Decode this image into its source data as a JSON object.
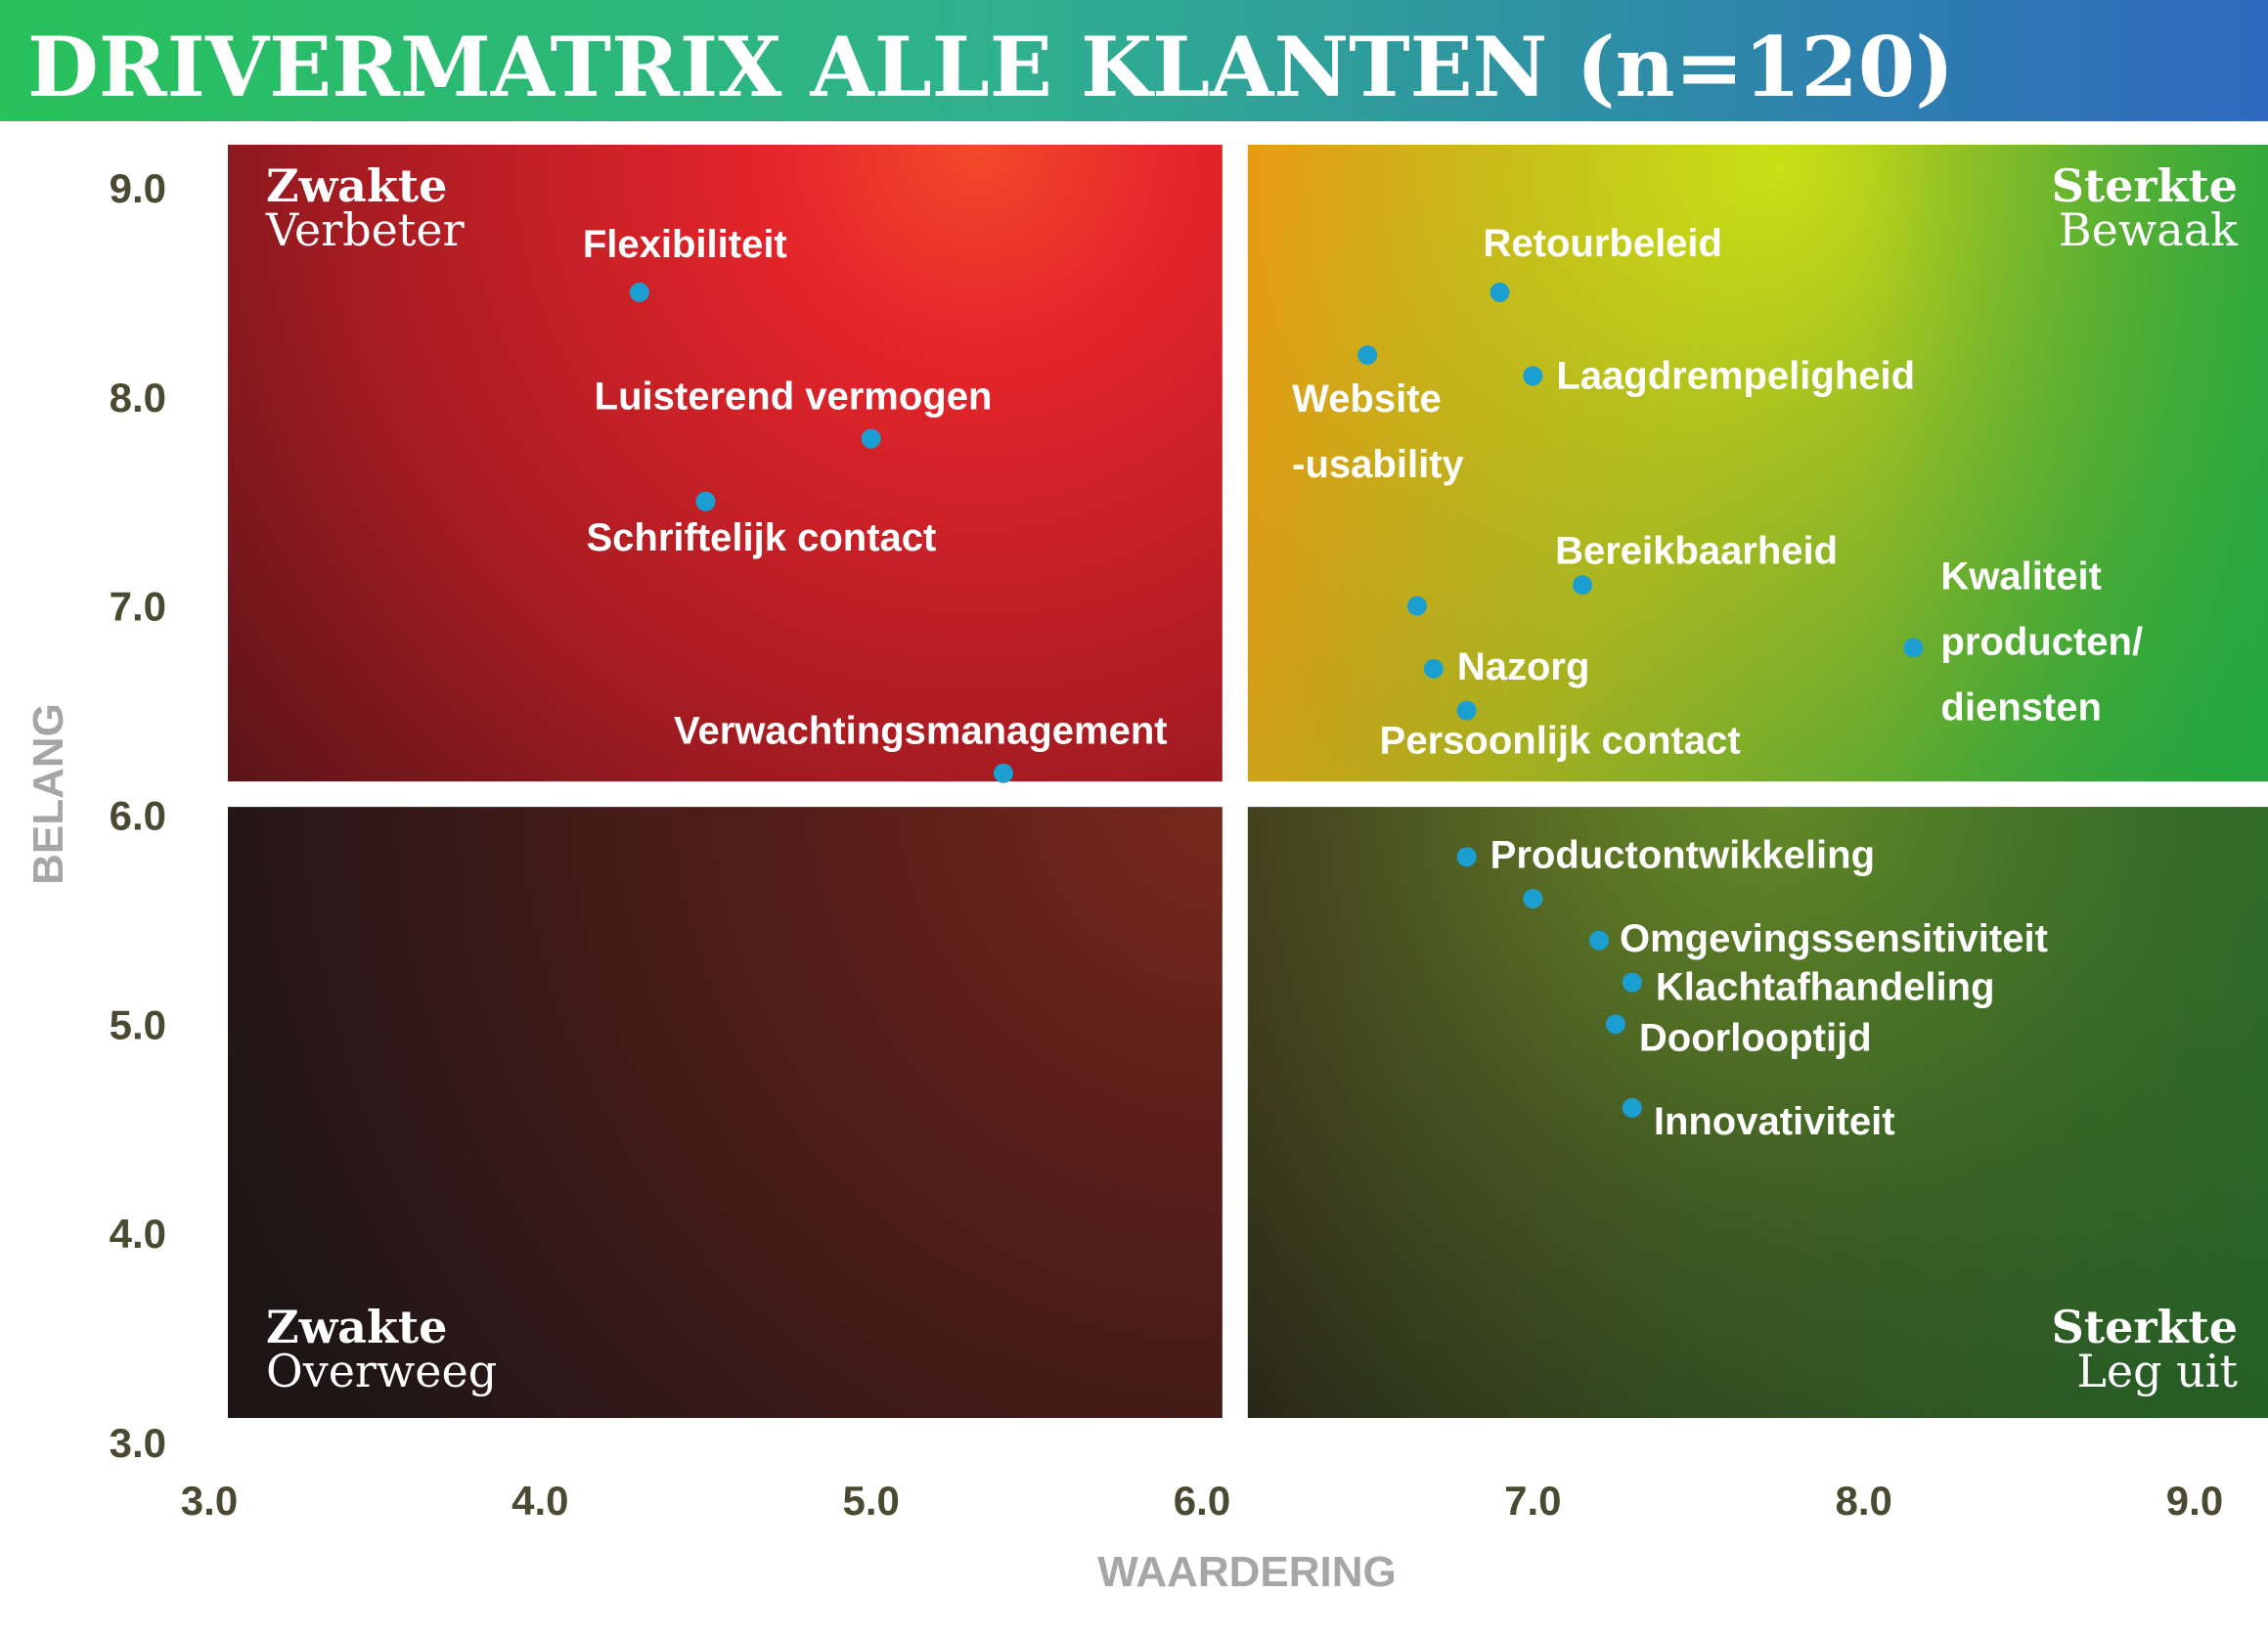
{
  "chart_data": {
    "type": "scatter",
    "title": "DRIVERMATRIX ALLE KLANTEN (n=120)",
    "xlabel": "WAARDERING",
    "ylabel": "BELANG",
    "xlim": [
      3.0,
      9.0
    ],
    "ylim": [
      3.0,
      9.0
    ],
    "x_split": 6.1,
    "y_split": 6.1,
    "x_ticks": [
      "3.0",
      "4.0",
      "5.0",
      "6.0",
      "7.0",
      "8.0",
      "9.0"
    ],
    "y_ticks": [
      "3.0",
      "4.0",
      "5.0",
      "6.0",
      "7.0",
      "8.0",
      "9.0"
    ],
    "grid": false,
    "quadrants": [
      {
        "id": "top-left",
        "title": "Zwakte",
        "subtitle": "Verbeter"
      },
      {
        "id": "top-right",
        "title": "Sterkte",
        "subtitle": "Bewaak"
      },
      {
        "id": "bottom-left",
        "title": "Zwakte",
        "subtitle": "Overweeg"
      },
      {
        "id": "bottom-right",
        "title": "Sterkte",
        "subtitle": "Leg uit"
      }
    ],
    "points": [
      {
        "label": "Flexibiliteit",
        "x": 4.3,
        "y": 8.5
      },
      {
        "label": "Luisterend vermogen",
        "x": 5.0,
        "y": 7.8
      },
      {
        "label": "Schriftelijk contact",
        "x": 4.5,
        "y": 7.5
      },
      {
        "label": "Verwachtingsmanagement",
        "x": 5.4,
        "y": 6.2
      },
      {
        "label": "Retourbeleid",
        "x": 6.9,
        "y": 8.5
      },
      {
        "label": "Website -usability",
        "x": 6.5,
        "y": 8.2
      },
      {
        "label": "Laagdrempeligheid",
        "x": 7.0,
        "y": 8.1
      },
      {
        "label": "Bereikbaarheid",
        "x": 7.15,
        "y": 7.1
      },
      {
        "label": "",
        "x": 6.65,
        "y": 7.0
      },
      {
        "label": "Nazorg",
        "x": 6.7,
        "y": 6.7
      },
      {
        "label": "Persoonlijk contact",
        "x": 6.8,
        "y": 6.5
      },
      {
        "label": "Kwaliteit producten/ diensten",
        "x": 8.15,
        "y": 6.8
      },
      {
        "label": "Productontwikkeling",
        "x": 6.8,
        "y": 5.8
      },
      {
        "label": "",
        "x": 7.0,
        "y": 5.6
      },
      {
        "label": "Omgevingssensitiviteit",
        "x": 7.2,
        "y": 5.4
      },
      {
        "label": "Klachtafhandeling",
        "x": 7.3,
        "y": 5.2
      },
      {
        "label": "Doorlooptijd",
        "x": 7.25,
        "y": 5.0
      },
      {
        "label": "Innovativiteit",
        "x": 7.3,
        "y": 4.6
      }
    ],
    "colors": {
      "point": "#1a9fd0",
      "tick_text": "#4a4a33",
      "axis_label": "#a6a6a6",
      "title_gradient_start": "#22c55e",
      "title_gradient_end": "#2f6fc0"
    }
  }
}
